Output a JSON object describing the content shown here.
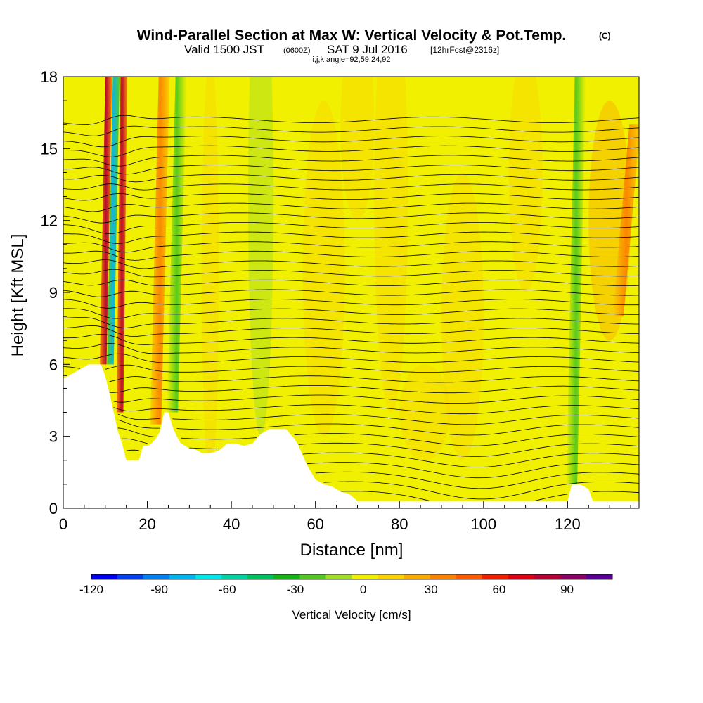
{
  "titles": {
    "main": "Wind-Parallel Section at Max W: Vertical Velocity & Pot.Temp.",
    "copyright": "(C)",
    "valid_prefix": "Valid 1500 JST",
    "valid_utc": "(0600Z)",
    "valid_date": "SAT 9 Jul 2016",
    "forecast": "[12hrFcst@2316z]",
    "indices": "i,j,k,angle=92,59,24,92"
  },
  "colors": {
    "background": "#ffffff",
    "terrain": "#ffffff",
    "contour_line": "#000000",
    "colorbar": [
      "#0000f0",
      "#0040f0",
      "#0080f0",
      "#00b4f0",
      "#00e6e6",
      "#00d2a0",
      "#00c060",
      "#14b414",
      "#50c81e",
      "#a0dc28",
      "#f0f000",
      "#fad200",
      "#faaa00",
      "#fa8200",
      "#fa5a00",
      "#f01e00",
      "#dc0014",
      "#b40032",
      "#8c0064",
      "#5a0096"
    ]
  },
  "chart_data": {
    "type": "heatmap",
    "xlabel": "Distance [nm]",
    "ylabel": "Height [Kft MSL]",
    "xlim": [
      0,
      137
    ],
    "ylim": [
      0,
      18
    ],
    "x_ticks": [
      0,
      20,
      40,
      60,
      80,
      100,
      120
    ],
    "y_ticks": [
      0,
      3,
      6,
      9,
      12,
      15,
      18
    ],
    "colorbar": {
      "label": "Vertical Velocity [cm/s]",
      "range": [
        -120,
        110
      ],
      "step": 11.5,
      "tick_values": [
        -120,
        -90,
        -60,
        -30,
        0,
        30,
        60,
        90
      ],
      "tick_labels": [
        "-120",
        "-90",
        "-60",
        "-30",
        "0",
        "30",
        "60",
        "90"
      ]
    },
    "terrain_profile": {
      "x": [
        0,
        3,
        6,
        9,
        10,
        11,
        12,
        13,
        14,
        15,
        16,
        17,
        18,
        19,
        20,
        21,
        22,
        23,
        24,
        25,
        26,
        27,
        28,
        29,
        30,
        31,
        33,
        35,
        37,
        39,
        41,
        43,
        45,
        47,
        49,
        51,
        53,
        55,
        56,
        57,
        58,
        59,
        60,
        62,
        64,
        66,
        68,
        70,
        72,
        120,
        121,
        123,
        125,
        126,
        137
      ],
      "height": [
        5.4,
        5.7,
        6.0,
        6.0,
        5.5,
        4.8,
        4.0,
        3.2,
        2.7,
        2.0,
        2.0,
        2.0,
        2.0,
        2.6,
        2.6,
        2.7,
        2.9,
        3.2,
        4.0,
        4.0,
        3.4,
        3.0,
        2.7,
        2.6,
        2.5,
        2.5,
        2.3,
        2.3,
        2.4,
        2.7,
        2.7,
        2.6,
        2.7,
        3.1,
        3.3,
        3.3,
        3.3,
        2.9,
        2.6,
        2.2,
        1.8,
        1.5,
        1.2,
        1.0,
        0.9,
        0.7,
        0.6,
        0.3,
        0.3,
        0.3,
        1.0,
        1.0,
        0.8,
        0.3,
        0.3
      ]
    },
    "velocity_features": [
      {
        "type": "updraft",
        "x_base": 9.5,
        "x_top": 10.8,
        "y_range": [
          6,
          18
        ],
        "peak_cm_s": 85
      },
      {
        "type": "downdraft",
        "x_base": 11.2,
        "x_top": 12.6,
        "y_range": [
          6,
          18
        ],
        "peak_cm_s": -100
      },
      {
        "type": "updraft",
        "x_base": 13.5,
        "x_top": 14.4,
        "y_range": [
          4,
          18
        ],
        "peak_cm_s": 75
      },
      {
        "type": "updraft",
        "x_base": 22,
        "x_top": 24,
        "y_range": [
          3.5,
          18
        ],
        "peak_cm_s": 35
      },
      {
        "type": "downdraft",
        "x_base": 26,
        "x_top": 28,
        "y_range": [
          4,
          18
        ],
        "peak_cm_s": -20
      },
      {
        "type": "downdraft",
        "x_base": 121,
        "x_top": 123,
        "y_range": [
          1,
          18
        ],
        "peak_cm_s": -35
      },
      {
        "type": "updraft",
        "x_base": 132,
        "x_top": 136,
        "y_range": [
          8,
          16
        ],
        "peak_cm_s": 25
      }
    ],
    "potential_temperature_contours": {
      "level_count": 40,
      "left_heights": [
        0.6,
        1.0,
        1.4,
        1.8,
        2.2,
        2.6,
        3.0,
        3.4,
        3.8,
        4.2,
        4.6,
        5.0,
        5.4,
        5.8,
        6.2,
        6.6,
        7.0,
        7.4,
        7.8,
        8.2,
        8.6,
        9.0,
        9.4,
        9.8,
        10.2,
        10.6,
        11.0,
        11.4,
        11.8,
        12.2,
        12.6,
        13.0,
        13.4,
        13.8,
        14.2,
        14.6,
        15.0,
        15.4,
        15.8,
        16.2
      ]
    }
  }
}
